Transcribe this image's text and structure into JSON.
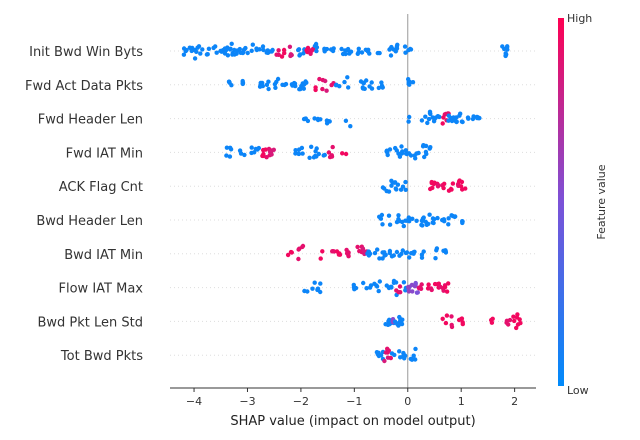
{
  "chart_data": {
    "type": "scatter",
    "subtype": "shap-beeswarm",
    "title": "",
    "xlabel": "SHAP value (impact on model output)",
    "xlim": [
      -4.45,
      2.4
    ],
    "xticks": [
      -4,
      -3,
      -2,
      -1,
      0,
      1,
      2
    ],
    "grid": false,
    "colorbar": {
      "label": "Feature value",
      "high_label": "High",
      "low_label": "Low",
      "low_color": "#008bfb",
      "mid_color": "#7c52d8",
      "high_color": "#ff0052"
    },
    "features": [
      {
        "name": "Init Bwd Win Byts",
        "points": [
          [
            -4.15,
            0.05
          ],
          [
            -4.05,
            0.05
          ],
          [
            -3.95,
            0.05
          ],
          [
            -3.85,
            0.05
          ],
          [
            -3.72,
            0.05
          ],
          [
            -3.6,
            0.05
          ],
          [
            -3.5,
            0.05
          ],
          [
            -3.4,
            0.05
          ],
          [
            -3.3,
            0.05
          ],
          [
            -3.2,
            0.05
          ],
          [
            -3.1,
            0.05
          ],
          [
            -3.0,
            0.05
          ],
          [
            -2.9,
            0.05
          ],
          [
            -2.8,
            0.05
          ],
          [
            -2.7,
            0.05
          ],
          [
            -2.6,
            0.05
          ],
          [
            -2.5,
            0.05
          ],
          [
            -2.42,
            0.9
          ],
          [
            -2.35,
            0.95
          ],
          [
            -2.2,
            0.85
          ],
          [
            -2.05,
            0.05
          ],
          [
            -1.95,
            0.05
          ],
          [
            -1.85,
            0.95
          ],
          [
            -1.8,
            0.9
          ],
          [
            -1.7,
            0.05
          ],
          [
            -1.55,
            0.05
          ],
          [
            -1.42,
            0.05
          ],
          [
            -1.2,
            0.05
          ],
          [
            -1.1,
            0.05
          ],
          [
            -0.9,
            0.05
          ],
          [
            -0.75,
            0.05
          ],
          [
            -0.55,
            0.05
          ],
          [
            -0.3,
            0.05
          ],
          [
            -0.2,
            0.05
          ],
          [
            -0.05,
            0.05
          ],
          [
            0.05,
            0.05
          ],
          [
            1.8,
            0.05
          ],
          [
            1.85,
            0.05
          ]
        ]
      },
      {
        "name": "Fwd Act Data Pkts",
        "points": [
          [
            -3.3,
            0.05
          ],
          [
            -3.05,
            0.05
          ],
          [
            -2.75,
            0.05
          ],
          [
            -2.6,
            0.05
          ],
          [
            -2.45,
            0.05
          ],
          [
            -2.3,
            0.05
          ],
          [
            -2.15,
            0.05
          ],
          [
            -2.0,
            0.05
          ],
          [
            -1.9,
            0.05
          ],
          [
            -1.7,
            0.95
          ],
          [
            -1.62,
            0.9
          ],
          [
            -1.5,
            0.85
          ],
          [
            -1.4,
            0.9
          ],
          [
            -1.3,
            0.05
          ],
          [
            -1.15,
            0.05
          ],
          [
            -0.85,
            0.05
          ],
          [
            -0.82,
            0.05
          ],
          [
            -0.7,
            0.05
          ],
          [
            -0.5,
            0.05
          ],
          [
            0.02,
            0.05
          ],
          [
            0.05,
            0.05
          ],
          [
            0.08,
            0.05
          ]
        ]
      },
      {
        "name": "Fwd Header Len",
        "points": [
          [
            -1.9,
            0.05
          ],
          [
            -1.72,
            0.05
          ],
          [
            -1.65,
            0.05
          ],
          [
            -1.5,
            0.05
          ],
          [
            -1.12,
            0.05
          ],
          [
            0.0,
            0.05
          ],
          [
            0.3,
            0.05
          ],
          [
            0.4,
            0.05
          ],
          [
            0.5,
            0.05
          ],
          [
            0.6,
            0.05
          ],
          [
            0.68,
            0.95
          ],
          [
            0.72,
            0.9
          ],
          [
            0.8,
            0.05
          ],
          [
            0.9,
            0.05
          ],
          [
            1.0,
            0.05
          ],
          [
            1.1,
            0.05
          ],
          [
            1.2,
            0.05
          ],
          [
            1.3,
            0.05
          ]
        ]
      },
      {
        "name": "Fwd IAT Min",
        "points": [
          [
            -3.35,
            0.05
          ],
          [
            -3.1,
            0.05
          ],
          [
            -2.9,
            0.05
          ],
          [
            -2.8,
            0.05
          ],
          [
            -2.7,
            0.95
          ],
          [
            -2.6,
            0.9
          ],
          [
            -2.55,
            0.85
          ],
          [
            -2.1,
            0.05
          ],
          [
            -2.0,
            0.05
          ],
          [
            -1.8,
            0.05
          ],
          [
            -1.7,
            0.05
          ],
          [
            -1.55,
            0.05
          ],
          [
            -1.45,
            0.9
          ],
          [
            -1.18,
            0.95
          ],
          [
            -0.35,
            0.05
          ],
          [
            -0.25,
            0.05
          ],
          [
            -0.15,
            0.05
          ],
          [
            0.0,
            0.05
          ],
          [
            0.1,
            0.05
          ],
          [
            0.2,
            0.05
          ],
          [
            0.3,
            0.05
          ],
          [
            0.38,
            0.05
          ]
        ]
      },
      {
        "name": "ACK Flag Cnt",
        "points": [
          [
            -0.42,
            0.05
          ],
          [
            -0.35,
            0.05
          ],
          [
            -0.25,
            0.05
          ],
          [
            -0.15,
            0.05
          ],
          [
            -0.08,
            0.05
          ],
          [
            0.45,
            0.95
          ],
          [
            0.52,
            0.95
          ],
          [
            0.6,
            0.9
          ],
          [
            0.7,
            0.95
          ],
          [
            0.8,
            0.95
          ],
          [
            0.9,
            0.9
          ],
          [
            1.0,
            0.95
          ],
          [
            1.05,
            0.95
          ]
        ]
      },
      {
        "name": "Bwd Header Len",
        "points": [
          [
            -0.5,
            0.05
          ],
          [
            -0.35,
            0.05
          ],
          [
            -0.2,
            0.05
          ],
          [
            -0.1,
            0.05
          ],
          [
            0.0,
            0.05
          ],
          [
            0.12,
            0.05
          ],
          [
            0.25,
            0.05
          ],
          [
            0.32,
            0.05
          ],
          [
            0.4,
            0.05
          ],
          [
            0.5,
            0.05
          ],
          [
            0.6,
            0.05
          ],
          [
            0.7,
            0.05
          ],
          [
            0.8,
            0.05
          ],
          [
            0.92,
            0.05
          ],
          [
            0.98,
            0.05
          ]
        ]
      },
      {
        "name": "Bwd IAT Min",
        "points": [
          [
            -2.2,
            0.95
          ],
          [
            -2.0,
            0.9
          ],
          [
            -1.6,
            0.95
          ],
          [
            -1.4,
            0.9
          ],
          [
            -1.3,
            0.95
          ],
          [
            -1.1,
            0.9
          ],
          [
            -0.9,
            0.9
          ],
          [
            -0.8,
            0.85
          ],
          [
            -0.72,
            0.05
          ],
          [
            -0.6,
            0.05
          ],
          [
            -0.5,
            0.05
          ],
          [
            -0.4,
            0.05
          ],
          [
            -0.3,
            0.05
          ],
          [
            -0.2,
            0.05
          ],
          [
            -0.1,
            0.05
          ],
          [
            -0.02,
            0.05
          ],
          [
            0.1,
            0.05
          ],
          [
            0.3,
            0.05
          ],
          [
            0.5,
            0.05
          ],
          [
            0.7,
            0.05
          ]
        ]
      },
      {
        "name": "Flow IAT Max",
        "points": [
          [
            -1.9,
            0.05
          ],
          [
            -1.75,
            0.05
          ],
          [
            -1.65,
            0.05
          ],
          [
            -1.0,
            0.05
          ],
          [
            -0.8,
            0.05
          ],
          [
            -0.7,
            0.05
          ],
          [
            -0.6,
            0.05
          ],
          [
            -0.5,
            0.05
          ],
          [
            -0.35,
            0.05
          ],
          [
            -0.25,
            0.05
          ],
          [
            -0.18,
            0.9
          ],
          [
            -0.05,
            0.05
          ],
          [
            0.0,
            0.5
          ],
          [
            0.05,
            0.6
          ],
          [
            0.12,
            0.55
          ],
          [
            0.15,
            0.5
          ],
          [
            0.25,
            0.9
          ],
          [
            0.35,
            0.95
          ],
          [
            0.45,
            0.9
          ],
          [
            0.55,
            0.95
          ],
          [
            0.65,
            0.9
          ],
          [
            0.72,
            0.95
          ]
        ]
      },
      {
        "name": "Bwd Pkt Len Std",
        "points": [
          [
            -0.38,
            0.05
          ],
          [
            -0.3,
            0.05
          ],
          [
            -0.25,
            0.55
          ],
          [
            -0.2,
            0.05
          ],
          [
            -0.12,
            0.05
          ],
          [
            0.7,
            0.95
          ],
          [
            0.85,
            0.9
          ],
          [
            1.0,
            0.95
          ],
          [
            1.55,
            0.95
          ],
          [
            1.88,
            0.9
          ],
          [
            2.02,
            0.95
          ],
          [
            2.08,
            0.95
          ]
        ]
      },
      {
        "name": "Tot Bwd Pkts",
        "points": [
          [
            -0.55,
            0.05
          ],
          [
            -0.48,
            0.05
          ],
          [
            -0.4,
            0.85
          ],
          [
            -0.35,
            0.9
          ],
          [
            -0.25,
            0.05
          ],
          [
            -0.12,
            0.05
          ],
          [
            -0.05,
            0.05
          ],
          [
            0.05,
            0.05
          ],
          [
            0.12,
            0.05
          ]
        ]
      }
    ]
  }
}
